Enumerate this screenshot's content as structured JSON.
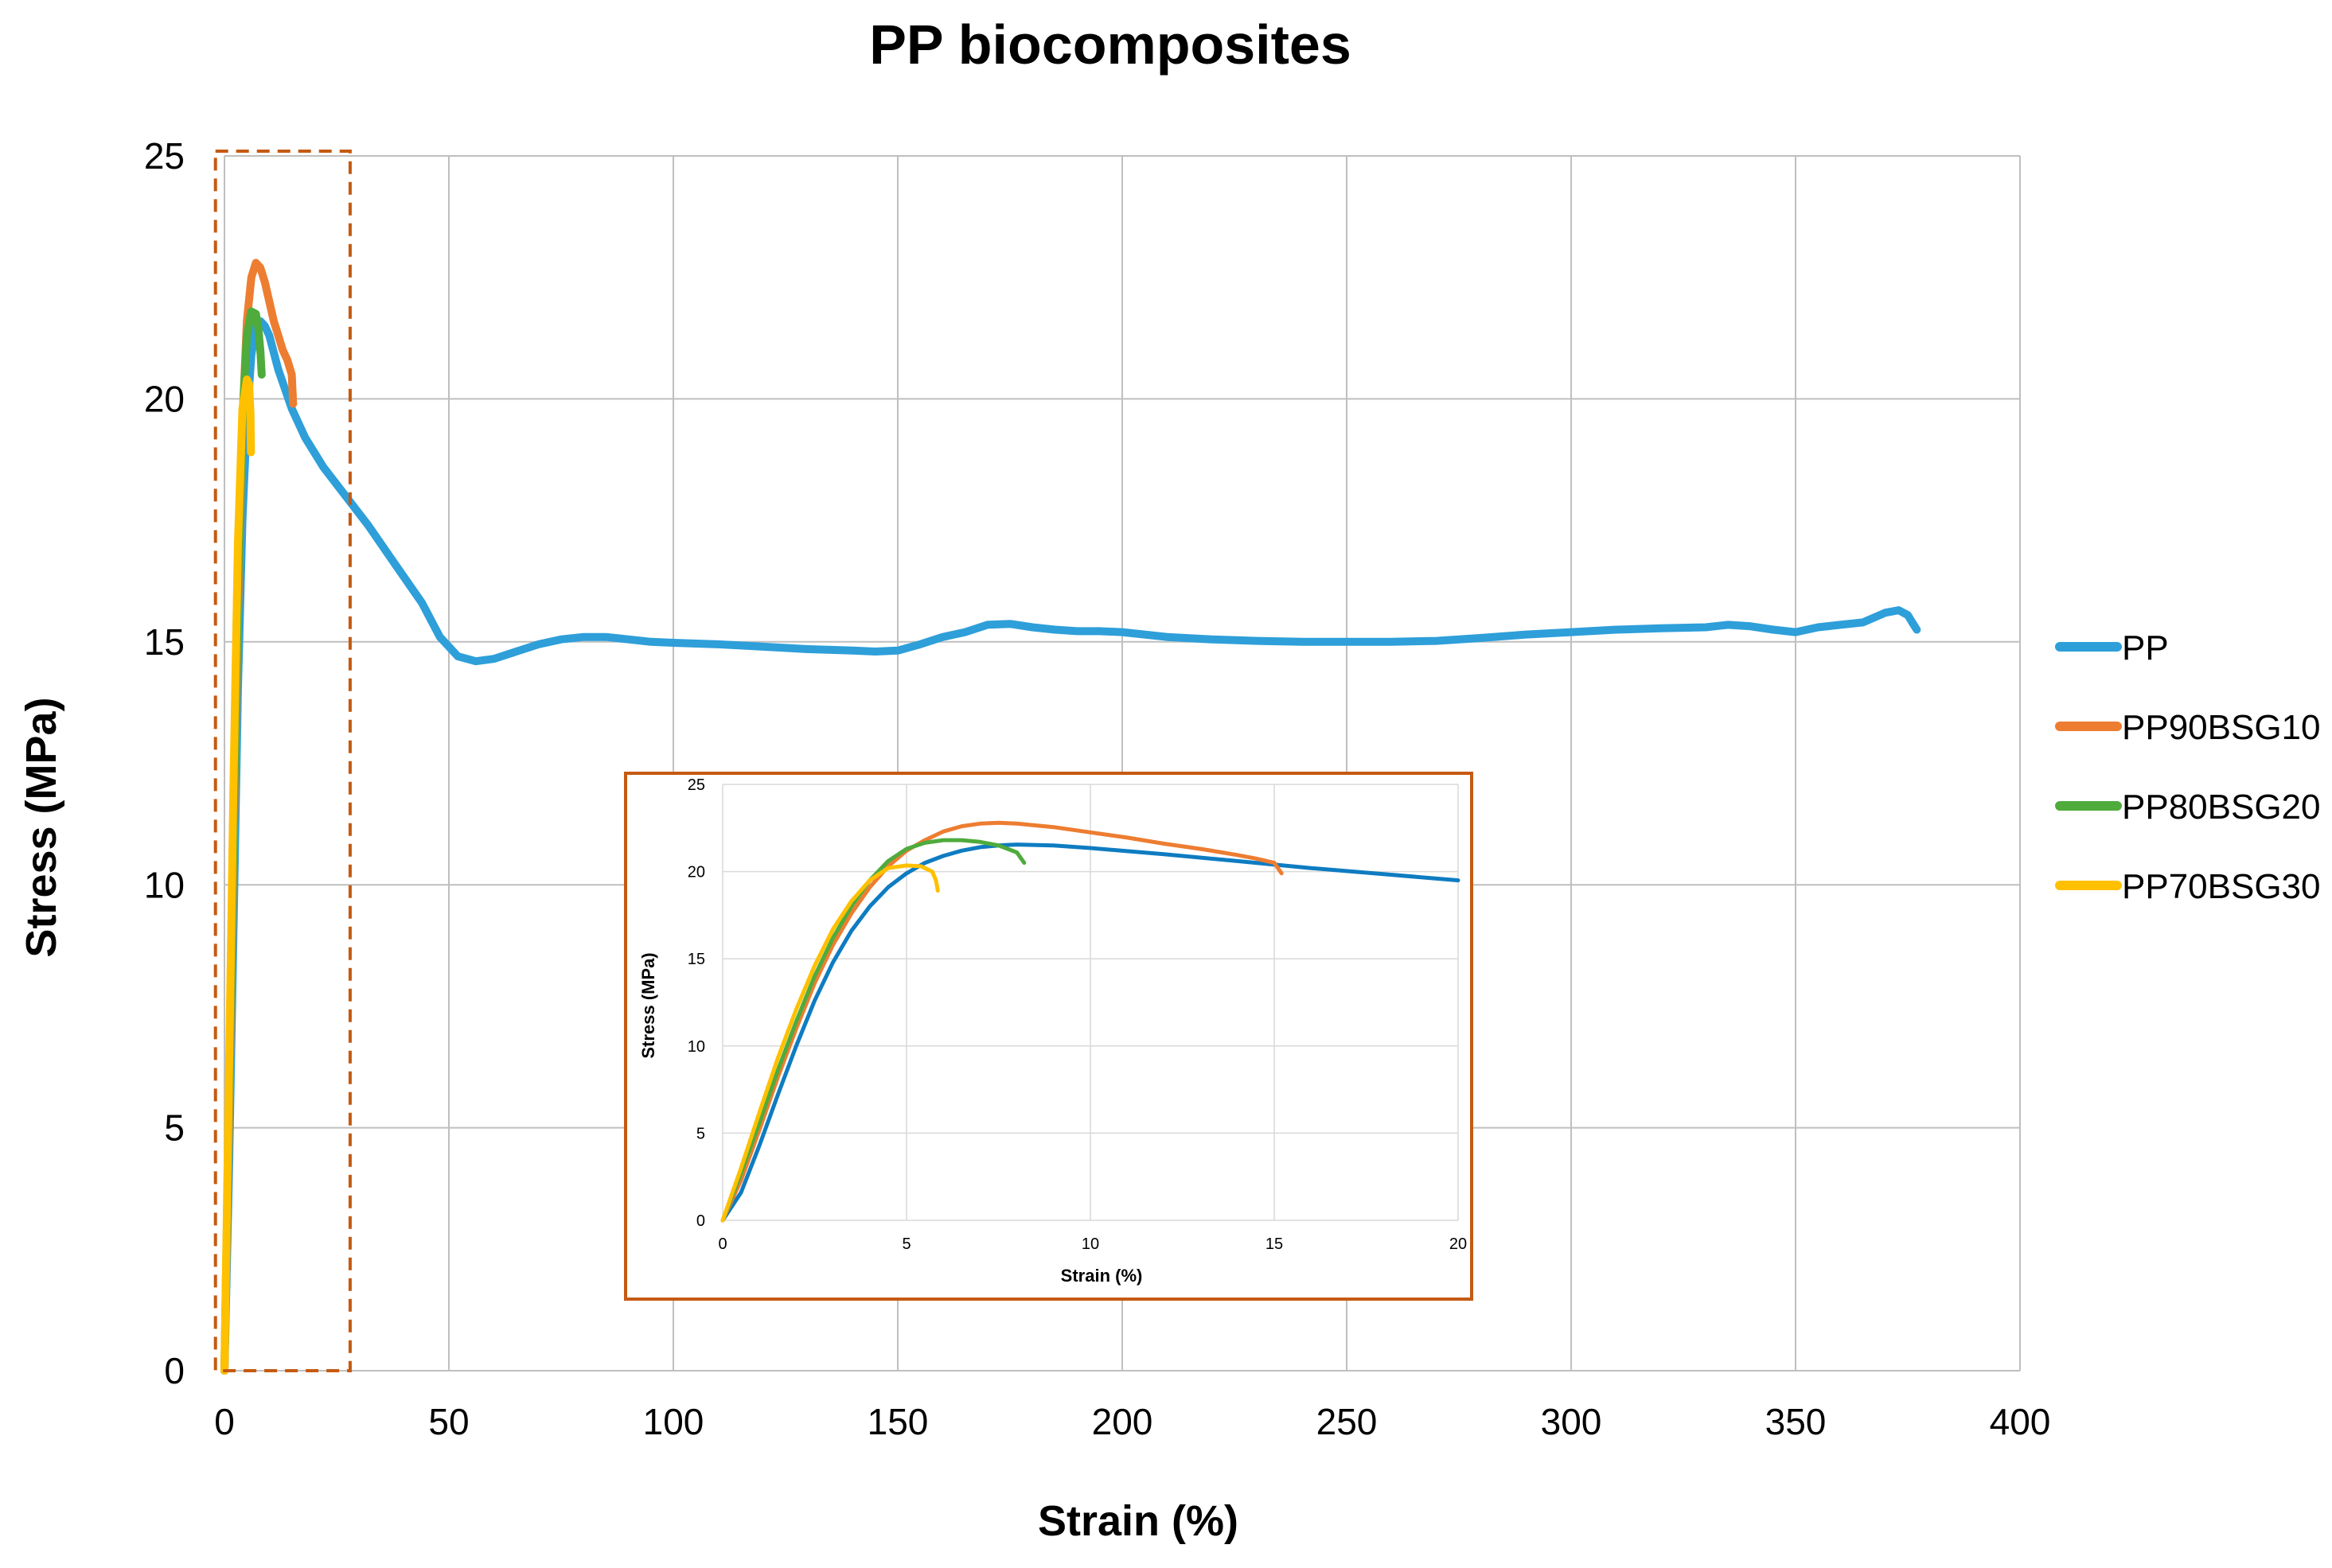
{
  "chart_data": [
    {
      "type": "line",
      "title": "PP biocomposites",
      "xlabel": "Strain (%)",
      "ylabel": "Stress (MPa)",
      "xlim": [
        0,
        400
      ],
      "ylim": [
        0,
        25
      ],
      "x_ticks": [
        0,
        50,
        100,
        150,
        200,
        250,
        300,
        350,
        400
      ],
      "y_ticks": [
        0,
        5,
        10,
        15,
        20,
        25
      ],
      "grid": true,
      "legend_position": "right",
      "highlight_region": {
        "x": [
          -2,
          28
        ],
        "y": [
          0,
          25
        ],
        "style": "dashed",
        "color": "#C55A11"
      },
      "series": [
        {
          "name": "PP",
          "color": "#2E9FD9",
          "x": [
            0,
            1,
            2,
            3,
            4,
            5,
            6,
            7,
            8,
            9,
            10,
            12,
            15,
            18,
            22,
            27,
            32,
            38,
            44,
            48,
            52,
            56,
            60,
            65,
            70,
            75,
            80,
            85,
            90,
            95,
            100,
            110,
            120,
            130,
            140,
            145,
            150,
            155,
            160,
            165,
            170,
            175,
            180,
            185,
            190,
            195,
            200,
            210,
            220,
            230,
            240,
            250,
            260,
            270,
            280,
            290,
            300,
            310,
            320,
            330,
            335,
            340,
            345,
            350,
            355,
            360,
            365,
            370,
            373,
            375,
            376,
            377
          ],
          "y": [
            0,
            4,
            9,
            14,
            17.5,
            19.6,
            20.9,
            21.5,
            21.6,
            21.5,
            21.3,
            20.6,
            19.8,
            19.2,
            18.6,
            18.0,
            17.4,
            16.6,
            15.8,
            15.1,
            14.7,
            14.6,
            14.65,
            14.8,
            14.95,
            15.05,
            15.1,
            15.1,
            15.05,
            15.0,
            14.98,
            14.95,
            14.9,
            14.85,
            14.82,
            14.8,
            14.82,
            14.95,
            15.1,
            15.2,
            15.35,
            15.37,
            15.3,
            15.25,
            15.22,
            15.22,
            15.2,
            15.1,
            15.05,
            15.02,
            15.0,
            15.0,
            15.0,
            15.02,
            15.08,
            15.15,
            15.2,
            15.25,
            15.28,
            15.3,
            15.35,
            15.32,
            15.25,
            15.2,
            15.3,
            15.35,
            15.4,
            15.6,
            15.65,
            15.55,
            15.4,
            15.25
          ]
        },
        {
          "name": "PP90BSG10",
          "color": "#ED7D31",
          "x": [
            0,
            1,
            2,
            3,
            4,
            5,
            6,
            7,
            8,
            9,
            10,
            11,
            12,
            13,
            14,
            15,
            15.3
          ],
          "y": [
            0,
            5,
            10.5,
            15.5,
            19.5,
            21.6,
            22.5,
            22.8,
            22.7,
            22.4,
            22.0,
            21.6,
            21.3,
            21.0,
            20.8,
            20.5,
            19.9
          ]
        },
        {
          "name": "PP80BSG20",
          "color": "#4EAB3C",
          "x": [
            0,
            1,
            2,
            3,
            4,
            5,
            6,
            7,
            7.5,
            8,
            8.3
          ],
          "y": [
            0,
            5.5,
            11,
            16,
            19.6,
            21.3,
            21.8,
            21.75,
            21.5,
            21.0,
            20.5
          ]
        },
        {
          "name": "PP70BSG30",
          "color": "#FFC000",
          "x": [
            0,
            1,
            2,
            3,
            4,
            5,
            5.5,
            5.8,
            5.9
          ],
          "y": [
            0,
            6,
            12,
            17,
            19.8,
            20.4,
            20.3,
            19.7,
            18.9
          ]
        }
      ]
    },
    {
      "type": "line",
      "title": "",
      "xlabel": "Strain (%)",
      "ylabel": "Stress (MPa)",
      "xlim": [
        0,
        20
      ],
      "ylim": [
        0,
        25
      ],
      "x_ticks": [
        0,
        5,
        10,
        15,
        20
      ],
      "y_ticks": [
        0,
        5,
        10,
        15,
        20,
        25
      ],
      "grid": true,
      "legend_position": "none",
      "series": [
        {
          "name": "PP",
          "color": "#0E7CC1",
          "x": [
            0,
            0.5,
            1,
            1.5,
            2,
            2.5,
            3,
            3.5,
            4,
            4.5,
            5,
            5.5,
            6,
            6.5,
            7,
            7.5,
            8,
            9,
            10,
            12,
            14,
            16,
            18,
            20
          ],
          "y": [
            0,
            1.6,
            4.3,
            7.2,
            10.0,
            12.6,
            14.8,
            16.6,
            18.0,
            19.1,
            19.9,
            20.5,
            20.9,
            21.2,
            21.4,
            21.5,
            21.55,
            21.5,
            21.35,
            21.0,
            20.6,
            20.2,
            19.85,
            19.5
          ]
        },
        {
          "name": "PP90BSG10",
          "color": "#ED7D31",
          "x": [
            0,
            0.5,
            1,
            1.5,
            2,
            2.5,
            3,
            3.5,
            4,
            4.5,
            5,
            5.5,
            6,
            6.5,
            7,
            7.5,
            8,
            9,
            10,
            11,
            12,
            13,
            14,
            14.5,
            15,
            15.2
          ],
          "y": [
            0,
            2.3,
            5.2,
            8.2,
            11.0,
            13.6,
            15.8,
            17.6,
            19.1,
            20.3,
            21.2,
            21.8,
            22.3,
            22.6,
            22.75,
            22.8,
            22.75,
            22.55,
            22.25,
            21.95,
            21.6,
            21.3,
            20.95,
            20.75,
            20.5,
            19.9
          ]
        },
        {
          "name": "PP80BSG20",
          "color": "#4EAB3C",
          "x": [
            0,
            0.5,
            1,
            1.5,
            2,
            2.5,
            3,
            3.5,
            4,
            4.5,
            5,
            5.5,
            6,
            6.5,
            7,
            7.5,
            8,
            8.2
          ],
          "y": [
            0,
            2.7,
            5.6,
            8.6,
            11.4,
            14.0,
            16.2,
            18.0,
            19.5,
            20.6,
            21.3,
            21.65,
            21.8,
            21.8,
            21.7,
            21.5,
            21.1,
            20.5
          ]
        },
        {
          "name": "PP70BSG30",
          "color": "#FFC000",
          "x": [
            0,
            0.5,
            1,
            1.5,
            2,
            2.5,
            3,
            3.5,
            4,
            4.5,
            5,
            5.4,
            5.7,
            5.8,
            5.85
          ],
          "y": [
            0,
            3.0,
            6.2,
            9.3,
            12.1,
            14.6,
            16.7,
            18.3,
            19.5,
            20.2,
            20.35,
            20.3,
            20.0,
            19.5,
            18.9
          ]
        }
      ]
    }
  ]
}
